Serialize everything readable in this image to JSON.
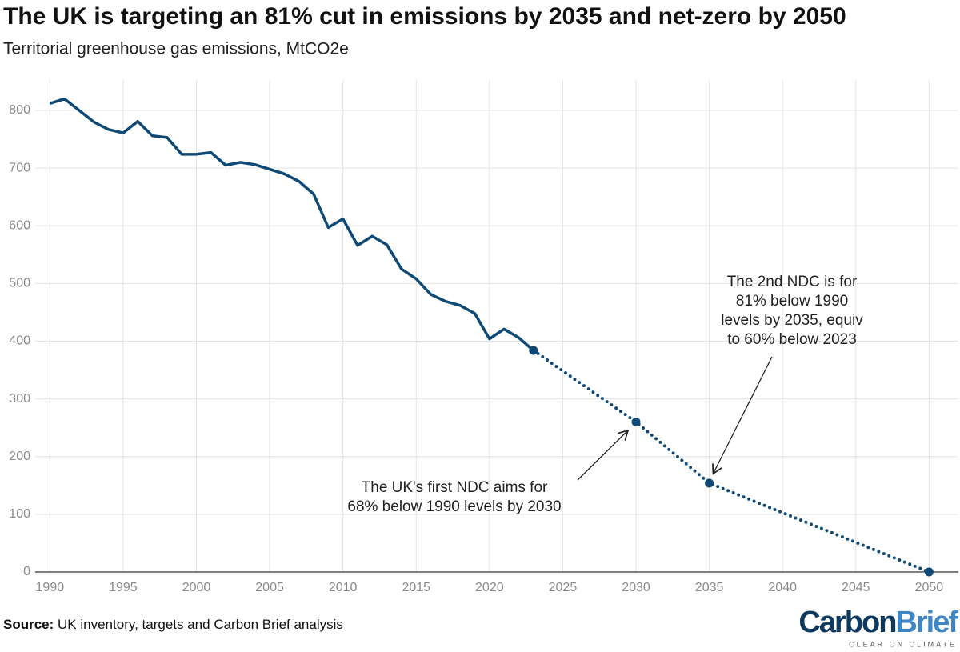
{
  "chart_data": {
    "type": "line",
    "title": "The UK is targeting an 81% cut in emissions by 2035 and net-zero by 2050",
    "subtitle": "Territorial greenhouse gas emissions, MtCO2e",
    "xlim": [
      1989,
      2052
    ],
    "xticks": [
      1990,
      1995,
      2000,
      2005,
      2010,
      2015,
      2020,
      2025,
      2030,
      2035,
      2040,
      2045,
      2050
    ],
    "ylim": [
      0,
      800
    ],
    "yticks": [
      0,
      100,
      200,
      300,
      400,
      500,
      600,
      700,
      800
    ],
    "grid": true,
    "series": [
      {
        "color": "#0e4a75",
        "line_style": "solid",
        "markers": false,
        "x": [
          1990,
          1991,
          1992,
          1993,
          1994,
          1995,
          1996,
          1997,
          1998,
          1999,
          2000,
          2001,
          2002,
          2003,
          2004,
          2005,
          2006,
          2007,
          2008,
          2009,
          2010,
          2011,
          2012,
          2013,
          2014,
          2015,
          2016,
          2017,
          2018,
          2019,
          2020,
          2021,
          2022,
          2023
        ],
        "values": [
          812,
          820,
          800,
          780,
          767,
          761,
          781,
          756,
          753,
          724,
          724,
          727,
          705,
          710,
          706,
          698,
          690,
          677,
          655,
          597,
          612,
          566,
          582,
          567,
          525,
          508,
          481,
          469,
          462,
          448,
          404,
          421,
          406,
          384
        ]
      },
      {
        "color": "#0e4a75",
        "line_style": "dotted",
        "markers": true,
        "x": [
          2023,
          2030,
          2035,
          2050
        ],
        "values": [
          384,
          260,
          154,
          0
        ]
      }
    ],
    "annotations": [
      {
        "lines": [
          "The UK's first NDC aims for",
          "68% below 1990 levels by 2030"
        ]
      },
      {
        "lines": [
          "The 2nd NDC is for",
          "81% below 1990",
          "levels by 2035, equiv",
          "to 60% below 2023"
        ]
      }
    ],
    "source_label": "Source:",
    "source": "UK inventory, targets and Carbon Brief analysis",
    "logo": {
      "first": "Carbon",
      "second": "Brief",
      "tagline": "CLEAR ON CLIMATE"
    }
  }
}
